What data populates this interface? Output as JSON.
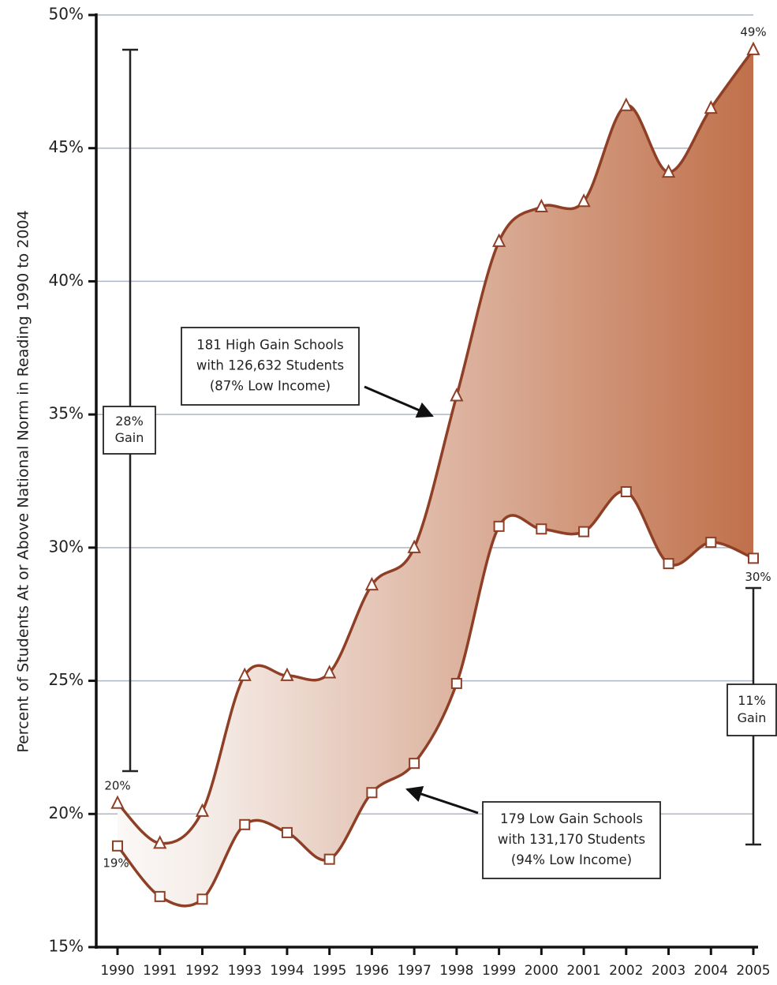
{
  "chart_data": {
    "type": "line",
    "y_label": "Percent of Students At or Above National Norm in Reading 1990 to 2004",
    "x": [
      1990,
      1991,
      1992,
      1993,
      1994,
      1995,
      1996,
      1997,
      1998,
      1999,
      2000,
      2001,
      2002,
      2003,
      2004,
      2005
    ],
    "xlim": [
      1990,
      2005
    ],
    "xticks": [
      1990,
      1991,
      1992,
      1993,
      1994,
      1995,
      1996,
      1997,
      1998,
      1999,
      2000,
      2001,
      2002,
      2003,
      2004,
      2005
    ],
    "ylim": [
      15,
      50
    ],
    "yticks": [
      {
        "value": 15,
        "label": "15%"
      },
      {
        "value": 20,
        "label": "20%"
      },
      {
        "value": 25,
        "label": "25%"
      },
      {
        "value": 30,
        "label": "30%"
      },
      {
        "value": 35,
        "label": "35%"
      },
      {
        "value": 40,
        "label": "40%"
      },
      {
        "value": 45,
        "label": "45%"
      },
      {
        "value": 50,
        "label": "50%"
      }
    ],
    "grid": true,
    "fill_between": true,
    "series": [
      {
        "color": "#8e3f26",
        "marker": "triangle",
        "values": [
          20.4,
          18.9,
          20.1,
          25.2,
          25.2,
          25.3,
          28.6,
          30.0,
          35.7,
          41.5,
          42.8,
          43.0,
          46.6,
          44.1,
          46.5,
          48.7
        ],
        "value_labels": [
          "20%",
          null,
          null,
          null,
          null,
          null,
          null,
          null,
          null,
          null,
          null,
          null,
          null,
          null,
          null,
          "49%"
        ]
      },
      {
        "color": "#8e3f26",
        "marker": "square",
        "values": [
          18.8,
          16.9,
          16.8,
          19.6,
          19.3,
          18.3,
          20.8,
          21.9,
          24.9,
          30.8,
          30.7,
          30.6,
          32.1,
          29.4,
          30.2,
          29.6
        ],
        "value_labels": [
          "19%",
          null,
          null,
          null,
          null,
          null,
          null,
          null,
          null,
          null,
          null,
          null,
          null,
          null,
          null,
          "30%"
        ]
      }
    ],
    "annotations": [
      {
        "lines": [
          "181 High Gain Schools",
          "with 126,632 Students",
          "(87% Low Income)"
        ]
      },
      {
        "lines": [
          "179 Low Gain Schools",
          "with 131,170 Students",
          "(94% Low Income)"
        ]
      },
      {
        "lines": [
          "28%",
          "Gain"
        ]
      },
      {
        "lines": [
          "11%",
          "Gain"
        ]
      }
    ]
  }
}
